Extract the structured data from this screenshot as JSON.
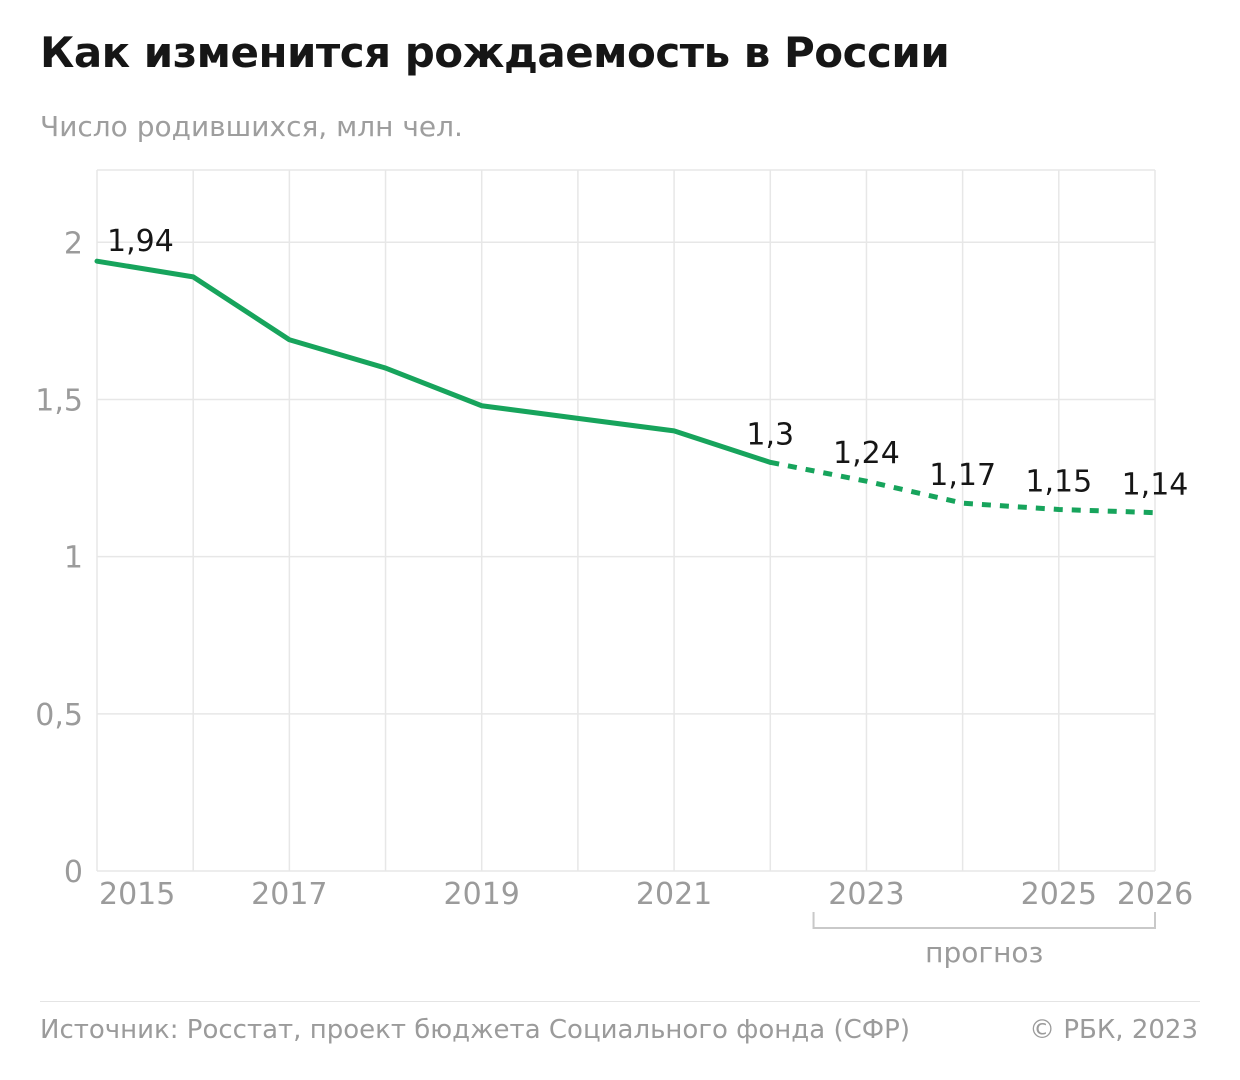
{
  "header": {
    "title": "Как изменится рождаемость в России",
    "subtitle": "Число родившихся, млн чел."
  },
  "chart_data": {
    "type": "line",
    "title": "Как изменится рождаемость в России",
    "ylabel": "Число родившихся, млн чел.",
    "xlim": [
      2015,
      2026
    ],
    "ylim": [
      0,
      2.23
    ],
    "grid": true,
    "legend_position": "none",
    "series": [
      {
        "name": "actual",
        "dashed": false,
        "x": [
          2015,
          2016,
          2017,
          2018,
          2019,
          2020,
          2021,
          2022
        ],
        "values": [
          1.94,
          1.89,
          1.69,
          1.6,
          1.48,
          1.44,
          1.4,
          1.3
        ]
      },
      {
        "name": "forecast",
        "dashed": true,
        "x": [
          2022,
          2023,
          2024,
          2025,
          2026
        ],
        "values": [
          1.3,
          1.24,
          1.17,
          1.15,
          1.14
        ]
      }
    ],
    "point_labels": [
      {
        "year": 2015,
        "value": 1.94,
        "text": "1,94",
        "anchor": "start",
        "dx": 10,
        "dy": -10
      },
      {
        "year": 2022,
        "value": 1.3,
        "text": "1,3"
      },
      {
        "year": 2023,
        "value": 1.24,
        "text": "1,24"
      },
      {
        "year": 2024,
        "value": 1.17,
        "text": "1,17"
      },
      {
        "year": 2025,
        "value": 1.15,
        "text": "1,15"
      },
      {
        "year": 2026,
        "value": 1.14,
        "text": "1,14"
      }
    ],
    "y_ticks": [
      {
        "value": 0,
        "label": "0"
      },
      {
        "value": 0.5,
        "label": "0,5"
      },
      {
        "value": 1,
        "label": "1"
      },
      {
        "value": 1.5,
        "label": "1,5"
      },
      {
        "value": 2,
        "label": "2"
      }
    ],
    "x_ticks": [
      {
        "value": 2015,
        "label": "2015",
        "anchor": "start",
        "dx": 2
      },
      {
        "value": 2017,
        "label": "2017"
      },
      {
        "value": 2019,
        "label": "2019"
      },
      {
        "value": 2021,
        "label": "2021"
      },
      {
        "value": 2023,
        "label": "2023"
      },
      {
        "value": 2025,
        "label": "2025"
      },
      {
        "value": 2026,
        "label": "2026"
      }
    ],
    "forecast_bracket": {
      "from": 2022.45,
      "to": 2026,
      "label": "прогноз"
    },
    "colors": {
      "line": "#17a45c",
      "grid": "#e7e7e7",
      "tick": "#9b9b9b",
      "label": "#161616",
      "bracket": "#c9c9c9"
    }
  },
  "footer": {
    "source": "Источник: Росстат, проект бюджета Социального фонда (СФР)",
    "copyright": "© РБК, 2023"
  }
}
